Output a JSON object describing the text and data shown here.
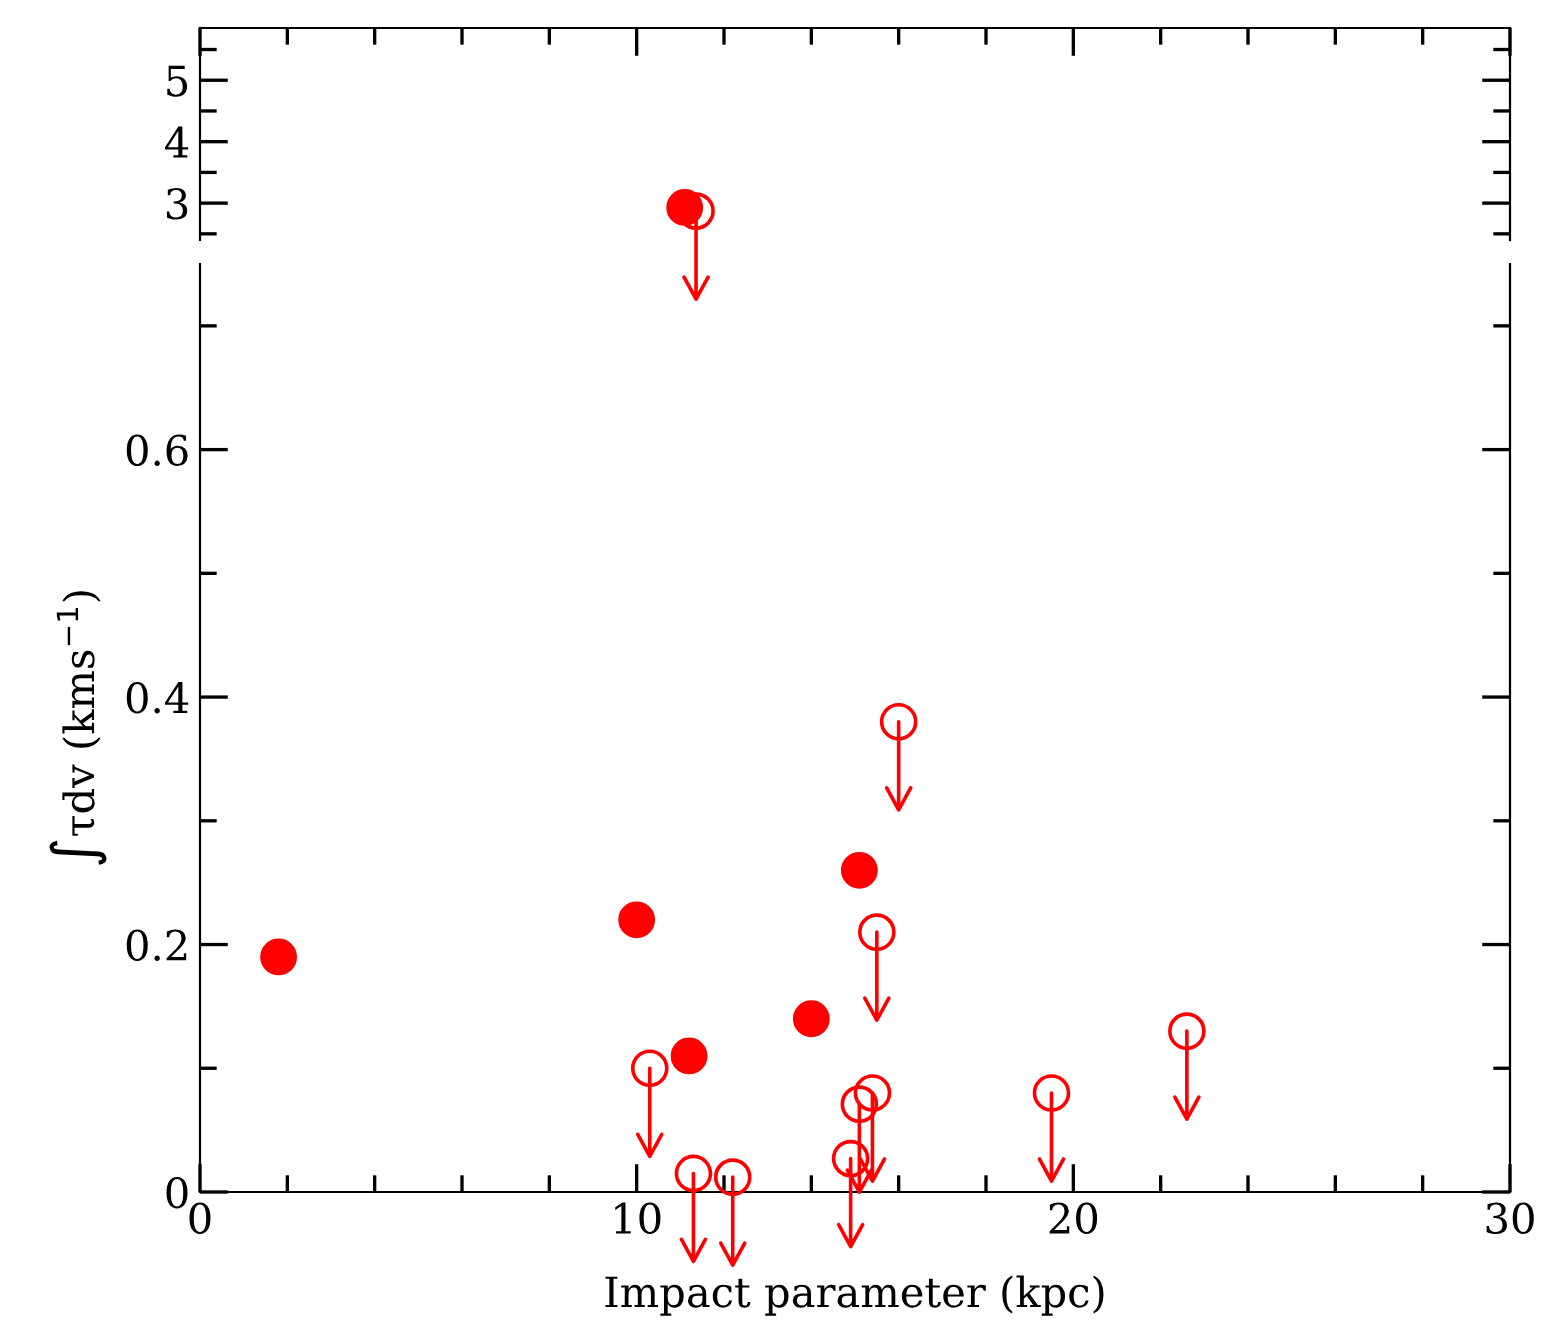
{
  "chart_data": [
    {
      "type": "scatter",
      "xlim": [
        0,
        30
      ],
      "ylim": [
        2.4,
        5.85
      ],
      "tick_labels": "y",
      "grid": false,
      "marker": "circle",
      "xticks": [
        0,
        {
          "value": 2,
          "label": null
        },
        {
          "value": 4,
          "label": null
        },
        {
          "value": 6,
          "label": null
        },
        {
          "value": 8,
          "label": null
        },
        10,
        {
          "value": 12,
          "label": null
        },
        {
          "value": 14,
          "label": null
        },
        {
          "value": 16,
          "label": null
        },
        {
          "value": 18,
          "label": null
        },
        20,
        {
          "value": 22,
          "label": null
        },
        {
          "value": 24,
          "label": null
        },
        {
          "value": 26,
          "label": null
        },
        {
          "value": 28,
          "label": null
        },
        30
      ],
      "yticks": [
        {
          "value": 2.5,
          "label": null
        },
        3,
        {
          "value": 3.5,
          "label": null
        },
        4,
        {
          "value": 4.5,
          "label": null
        },
        5,
        {
          "value": 5.5,
          "label": null
        }
      ],
      "series": [
        {
          "color": "#ff0000",
          "x": [
            11.1
          ],
          "values": [
            2.93
          ]
        },
        {
          "color": "#ff0000",
          "x": [
            11.36
          ],
          "values": [
            2.87
          ]
        }
      ]
    },
    {
      "type": "scatter",
      "xlim": [
        0,
        30
      ],
      "ylim": [
        0,
        0.75
      ],
      "xlabel": "Impact parameter (kpc)",
      "ylabel": "∫τdv (kms$^{−1}$)",
      "grid": false,
      "marker": "circle",
      "xticks": [
        0,
        {
          "value": 2,
          "label": null
        },
        {
          "value": 4,
          "label": null
        },
        {
          "value": 6,
          "label": null
        },
        {
          "value": 8,
          "label": null
        },
        10,
        {
          "value": 12,
          "label": null
        },
        {
          "value": 14,
          "label": null
        },
        {
          "value": 16,
          "label": null
        },
        {
          "value": 18,
          "label": null
        },
        20,
        {
          "value": 22,
          "label": null
        },
        {
          "value": 24,
          "label": null
        },
        {
          "value": 26,
          "label": null
        },
        {
          "value": 28,
          "label": null
        },
        30
      ],
      "yticks": [
        0,
        {
          "value": 0.1,
          "label": null
        },
        0.2,
        {
          "value": 0.3,
          "label": null
        },
        0.4,
        {
          "value": 0.5,
          "label": null
        },
        0.6,
        {
          "value": 0.7,
          "label": null
        }
      ],
      "series": [
        {
          "color": "#ff0000",
          "x": [
            1.8,
            10.0,
            11.2,
            14.0,
            15.1
          ],
          "values": [
            0.19,
            0.22,
            0.11,
            0.14,
            0.26
          ]
        },
        {
          "color": "#ff0000",
          "x": [
            16.0,
            15.5,
            10.3,
            11.3,
            12.2,
            14.9,
            15.1,
            15.4,
            19.5,
            22.6
          ],
          "values": [
            0.38,
            0.21,
            0.1,
            0.015,
            0.012,
            0.027,
            0.071,
            0.08,
            0.08,
            0.13
          ]
        }
      ]
    }
  ]
}
